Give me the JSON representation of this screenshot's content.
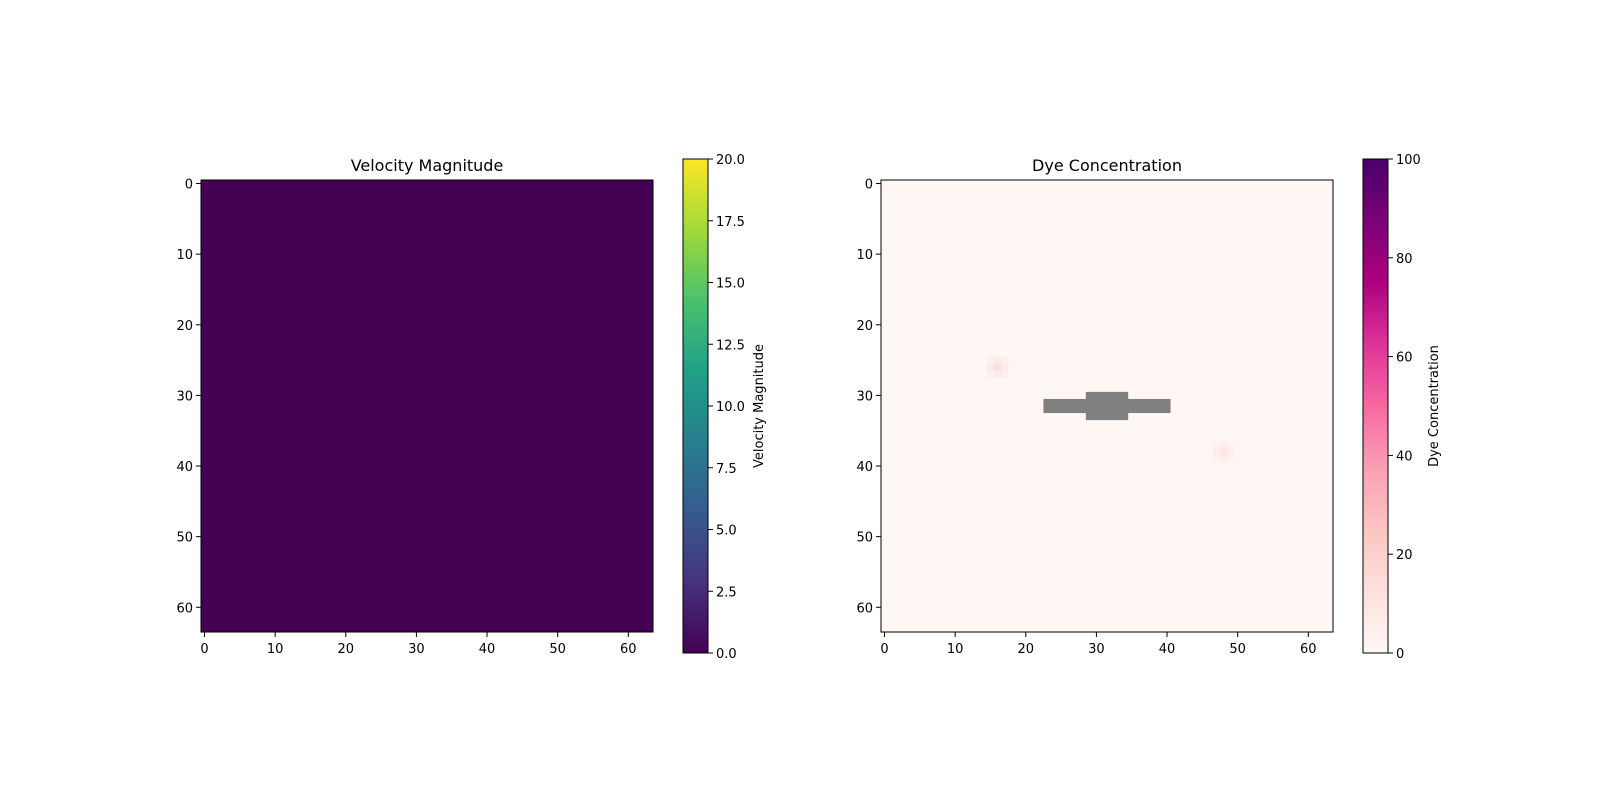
{
  "chart_data": [
    {
      "type": "heatmap",
      "title": "Velocity Magnitude",
      "xlabel": "",
      "ylabel": "",
      "grid_size": [
        64,
        64
      ],
      "x_ticks": [
        0,
        10,
        20,
        30,
        40,
        50,
        60
      ],
      "y_ticks": [
        0,
        10,
        20,
        30,
        40,
        50,
        60
      ],
      "xlim": [
        -0.5,
        63.5
      ],
      "ylim": [
        63.5,
        -0.5
      ],
      "field_value": 0.0,
      "colormap": "viridis",
      "colormap_stops": [
        "#440154",
        "#46327e",
        "#365c8d",
        "#277f8e",
        "#1fa187",
        "#4ac16d",
        "#a0da39",
        "#fde725"
      ],
      "colorbar": {
        "label": "Velocity Magnitude",
        "range": [
          0.0,
          20.0
        ],
        "ticks": [
          "0.0",
          "2.5",
          "5.0",
          "7.5",
          "10.0",
          "12.5",
          "15.0",
          "17.5",
          "20.0"
        ]
      },
      "grid": false
    },
    {
      "type": "heatmap",
      "title": "Dye Concentration",
      "xlabel": "",
      "ylabel": "",
      "grid_size": [
        64,
        64
      ],
      "x_ticks": [
        0,
        10,
        20,
        30,
        40,
        50,
        60
      ],
      "y_ticks": [
        0,
        10,
        20,
        30,
        40,
        50,
        60
      ],
      "xlim": [
        -0.5,
        63.5
      ],
      "ylim": [
        63.5,
        -0.5
      ],
      "background_value": 0,
      "colormap": "RdPu",
      "colormap_stops": [
        "#fff7f3",
        "#fde0dd",
        "#fcc5c0",
        "#fa9fb5",
        "#f768a1",
        "#dd3497",
        "#ae017e",
        "#7a0177",
        "#49006a"
      ],
      "dye_sources": [
        {
          "x": 16,
          "y": 26,
          "peak": 12
        },
        {
          "x": 48,
          "y": 38,
          "peak": 10
        }
      ],
      "obstacle": {
        "color": "#808080",
        "cells": [
          {
            "x0": 23,
            "x1": 40,
            "y0": 31,
            "y1": 32
          },
          {
            "x0": 29,
            "x1": 34,
            "y0": 30,
            "y1": 33
          }
        ]
      },
      "colorbar": {
        "label": "Dye Concentration",
        "range": [
          0,
          100
        ],
        "ticks": [
          "0",
          "20",
          "40",
          "60",
          "80",
          "100"
        ]
      },
      "grid": false
    }
  ]
}
